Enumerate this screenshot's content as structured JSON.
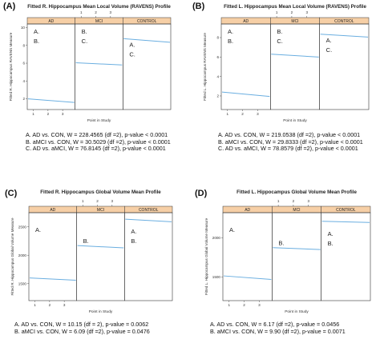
{
  "panels": [
    {
      "letter": "(A)",
      "title": "Fitted R. Hippocampus Mean Local Volume (RAVENS) Profile",
      "ylabel": "Fitted R. Hippocampus RAVENS Measure",
      "xlabel": "Point in Study",
      "stats": [
        "A.  AD vs. CON, W = 228.4565 (df =2), p-value < 0.0001",
        "B.  aMCI vs. CON, W = 30.5029 (df =2), p-value < 0.0001",
        "C.  AD vs. aMCI, W = 76.8145 (df =2), p-value < 0.0001"
      ]
    },
    {
      "letter": "(B)",
      "title": "Fitted L. Hippocampus Mean Local Volume (RAVENS) Profile",
      "ylabel": "Fitted L. Hippocampus RAVENS Measure",
      "xlabel": "Point in Study",
      "stats": [
        "A.  AD vs. CON, W = 219.0538 (df =2), p-value < 0.0001",
        "B.  aMCI vs. CON, W = 29.8333 (df =2), p-value < 0.0001",
        "C.  AD vs. aMCI, W = 78.8579 (df =2), p-value < 0.0001"
      ]
    },
    {
      "letter": "(C)",
      "title": "Fitted R. Hippocampus Global Volume Mean Profile",
      "ylabel": "Fitted R. Hippocampus Global Volume Measure",
      "xlabel": "Point in Study",
      "stats": [
        "A.  AD vs. CON, W = 10.15 (df = 2), p-value = 0.0062",
        "B.  aMCI vs. CON, W = 6.09 (df =2), p-value = 0.0476"
      ]
    },
    {
      "letter": "(D)",
      "title": "Fitted L. Hippocampus Global Volume Mean Profile",
      "ylabel": "Fitted L. Hippocampus Global Volume Measure",
      "xlabel": "Point in Study",
      "stats": [
        "A.  AD vs. CON, W = 6.17 (df =2), p-value = 0.0456",
        "B.  aMCI vs. CON, W = 9.90 (df =2), p-value = 0.0071"
      ]
    }
  ],
  "chart_data": [
    {
      "type": "line",
      "title": "Fitted R. Hippocampus Mean Local Volume (RAVENS) Profile",
      "xlabel": "Point in Study",
      "ylabel": "Fitted R. Hippocampus RAVENS Measure",
      "facets": [
        "AD",
        "MCI",
        "CONTROL"
      ],
      "x_ticks": [
        "1",
        "2",
        "3"
      ],
      "y_ticks": [
        2,
        4,
        6,
        8,
        10
      ],
      "ylim": [
        0.8,
        10.4
      ],
      "series": [
        {
          "x": [
            1,
            3.5
          ],
          "values": [
            2.0,
            1.6
          ]
        },
        {
          "x": [
            1,
            3.5
          ],
          "values": [
            6.05,
            5.8
          ]
        },
        {
          "x": [
            1,
            3.5
          ],
          "values": [
            8.75,
            8.35
          ]
        }
      ],
      "annotations": [
        {
          "facet": "AD",
          "labels": [
            "A.",
            "B."
          ]
        },
        {
          "facet": "MCI",
          "labels": [
            "B.",
            "C."
          ]
        },
        {
          "facet": "CONTROL",
          "labels": [
            "A.",
            "C."
          ]
        }
      ],
      "grid": false,
      "line_color": "#6aaee0",
      "strip_color": "#f6cfa6"
    },
    {
      "type": "line",
      "title": "Fitted L. Hippocampus Mean Local Volume (RAVENS) Profile",
      "xlabel": "Point in Study",
      "ylabel": "Fitted L. Hippocampus RAVENS Measure",
      "facets": [
        "AD",
        "MCI",
        "CONTROL"
      ],
      "x_ticks": [
        "1",
        "2",
        "3"
      ],
      "y_ticks": [
        2,
        4,
        6,
        8
      ],
      "ylim": [
        0.6,
        9.4
      ],
      "series": [
        {
          "x": [
            1,
            3.5
          ],
          "values": [
            2.4,
            1.95
          ]
        },
        {
          "x": [
            1,
            3.5
          ],
          "values": [
            6.3,
            6.0
          ]
        },
        {
          "x": [
            1,
            3.5
          ],
          "values": [
            8.35,
            8.05
          ]
        }
      ],
      "annotations": [
        {
          "facet": "AD",
          "labels": [
            "A.",
            "B."
          ]
        },
        {
          "facet": "MCI",
          "labels": [
            "B.",
            "C."
          ]
        },
        {
          "facet": "CONTROL",
          "labels": [
            "A.",
            "C."
          ]
        }
      ],
      "grid": false,
      "line_color": "#6aaee0",
      "strip_color": "#f6cfa6"
    },
    {
      "type": "line",
      "title": "Fitted R. Hippocampus Global Volume Mean Profile",
      "xlabel": "Point in Study",
      "ylabel": "Fitted R. Hippocampus Global Volume Measure",
      "facets": [
        "AD",
        "MCI",
        "CONTROL"
      ],
      "x_ticks": [
        "1",
        "2",
        "3"
      ],
      "y_ticks": [
        1500,
        2000,
        2500
      ],
      "ylim": [
        1200,
        2750
      ],
      "series": [
        {
          "x": [
            1,
            3.5
          ],
          "values": [
            1600,
            1560
          ]
        },
        {
          "x": [
            1,
            3.5
          ],
          "values": [
            2170,
            2130
          ]
        },
        {
          "x": [
            1,
            3.5
          ],
          "values": [
            2635,
            2590
          ]
        }
      ],
      "annotations": [
        {
          "facet": "AD",
          "labels": [
            "A."
          ]
        },
        {
          "facet": "MCI",
          "labels": [
            "B."
          ]
        },
        {
          "facet": "CONTROL",
          "labels": [
            "A.",
            "B."
          ]
        }
      ],
      "grid": false,
      "line_color": "#6aaee0",
      "strip_color": "#f6cfa6"
    },
    {
      "type": "line",
      "title": "Fitted L. Hippocampus Global Volume Mean Profile",
      "xlabel": "Point in Study",
      "ylabel": "Fitted L. Hippocampus Global Volume Measure",
      "facets": [
        "AD",
        "MCI",
        "CONTROL"
      ],
      "x_ticks": [
        "1",
        "2",
        "3"
      ],
      "y_ticks": [
        1500,
        2000
      ],
      "ylim": [
        1200,
        2320
      ],
      "series": [
        {
          "x": [
            1,
            3.5
          ],
          "values": [
            1515,
            1470
          ]
        },
        {
          "x": [
            1,
            3.5
          ],
          "values": [
            1875,
            1850
          ]
        },
        {
          "x": [
            1,
            3.5
          ],
          "values": [
            2210,
            2195
          ]
        }
      ],
      "annotations": [
        {
          "facet": "AD",
          "labels": [
            "A."
          ]
        },
        {
          "facet": "MCI",
          "labels": [
            "B."
          ]
        },
        {
          "facet": "CONTROL",
          "labels": [
            "A.",
            "B."
          ]
        }
      ],
      "grid": false,
      "line_color": "#6aaee0",
      "strip_color": "#f6cfa6"
    }
  ]
}
